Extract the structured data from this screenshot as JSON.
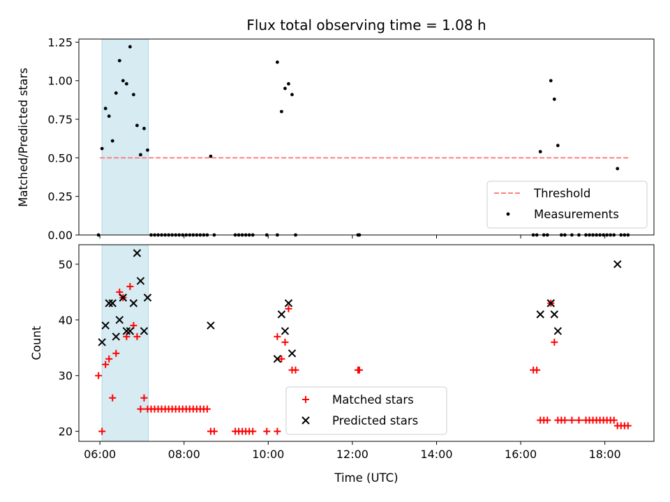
{
  "chart_data": [
    {
      "type": "scatter",
      "title": "Flux total observing time = 1.08 h",
      "xlabel": "",
      "ylabel": "Matched/Predicted stars",
      "xlim": [
        "05:30",
        "19:10"
      ],
      "ylim": [
        0,
        1.27
      ],
      "yticks": [
        "0.00",
        "0.25",
        "0.50",
        "0.75",
        "1.00",
        "1.25"
      ],
      "highlight_span": {
        "from": "06:03",
        "to": "07:09",
        "color": "#add8e6"
      },
      "threshold": {
        "name": "Threshold",
        "y": 0.5,
        "from": "06:00",
        "to": "18:35",
        "color": "#ff7f7f"
      },
      "series": [
        {
          "name": "Measurements",
          "color": "#000000",
          "points": [
            [
              "05:58",
              0.0
            ],
            [
              "06:03",
              0.56
            ],
            [
              "06:08",
              0.82
            ],
            [
              "06:13",
              0.77
            ],
            [
              "06:18",
              0.61
            ],
            [
              "06:23",
              0.92
            ],
            [
              "06:28",
              1.13
            ],
            [
              "06:33",
              1.0
            ],
            [
              "06:38",
              0.98
            ],
            [
              "06:43",
              1.22
            ],
            [
              "06:48",
              0.91
            ],
            [
              "06:53",
              0.71
            ],
            [
              "06:58",
              0.52
            ],
            [
              "07:03",
              0.69
            ],
            [
              "07:08",
              0.55
            ],
            [
              "07:13",
              0.0
            ],
            [
              "07:18",
              0.0
            ],
            [
              "07:23",
              0.0
            ],
            [
              "07:28",
              0.0
            ],
            [
              "07:33",
              0.0
            ],
            [
              "07:38",
              0.0
            ],
            [
              "07:43",
              0.0
            ],
            [
              "07:48",
              0.0
            ],
            [
              "07:53",
              0.0
            ],
            [
              "07:58",
              0.0
            ],
            [
              "08:03",
              0.0
            ],
            [
              "08:08",
              0.0
            ],
            [
              "08:13",
              0.0
            ],
            [
              "08:18",
              0.0
            ],
            [
              "08:23",
              0.0
            ],
            [
              "08:28",
              0.0
            ],
            [
              "08:33",
              0.0
            ],
            [
              "08:38",
              0.51
            ],
            [
              "08:43",
              0.0
            ],
            [
              "09:13",
              0.0
            ],
            [
              "09:18",
              0.0
            ],
            [
              "09:23",
              0.0
            ],
            [
              "09:28",
              0.0
            ],
            [
              "09:33",
              0.0
            ],
            [
              "09:38",
              0.0
            ],
            [
              "09:58",
              0.0
            ],
            [
              "10:13",
              0.0
            ],
            [
              "10:13",
              1.12
            ],
            [
              "10:19",
              0.8
            ],
            [
              "10:24",
              0.95
            ],
            [
              "10:29",
              0.98
            ],
            [
              "10:34",
              0.91
            ],
            [
              "10:39",
              0.0
            ],
            [
              "12:08",
              0.0
            ],
            [
              "12:10",
              0.0
            ],
            [
              "16:18",
              0.0
            ],
            [
              "16:23",
              0.0
            ],
            [
              "16:28",
              0.54
            ],
            [
              "16:33",
              0.0
            ],
            [
              "16:38",
              0.0
            ],
            [
              "16:43",
              1.0
            ],
            [
              "16:48",
              0.88
            ],
            [
              "16:53",
              0.58
            ],
            [
              "16:58",
              0.0
            ],
            [
              "17:03",
              0.0
            ],
            [
              "17:13",
              0.0
            ],
            [
              "17:23",
              0.0
            ],
            [
              "17:33",
              0.0
            ],
            [
              "17:38",
              0.0
            ],
            [
              "17:43",
              0.0
            ],
            [
              "17:48",
              0.0
            ],
            [
              "17:53",
              0.0
            ],
            [
              "17:58",
              0.0
            ],
            [
              "18:03",
              0.0
            ],
            [
              "18:08",
              0.0
            ],
            [
              "18:13",
              0.0
            ],
            [
              "18:18",
              0.43
            ],
            [
              "18:23",
              0.0
            ],
            [
              "18:28",
              0.0
            ],
            [
              "18:33",
              0.0
            ]
          ]
        }
      ],
      "legend": {
        "placement": "lower-right",
        "entries": [
          "Threshold",
          "Measurements"
        ]
      }
    },
    {
      "type": "scatter",
      "title": "",
      "xlabel": "Time (UTC)",
      "ylabel": "Count",
      "xlim": [
        "05:30",
        "19:10"
      ],
      "ylim": [
        18.2,
        53.5
      ],
      "xticks": [
        "06:00",
        "08:00",
        "10:00",
        "12:00",
        "14:00",
        "16:00",
        "18:00"
      ],
      "yticks": [
        "20",
        "30",
        "40",
        "50"
      ],
      "highlight_span": {
        "from": "06:03",
        "to": "07:09",
        "color": "#add8e6"
      },
      "series": [
        {
          "name": "Matched stars",
          "marker": "plus",
          "color": "#ff0000",
          "points": [
            [
              "05:58",
              30
            ],
            [
              "06:03",
              20
            ],
            [
              "06:08",
              32
            ],
            [
              "06:13",
              33
            ],
            [
              "06:18",
              26
            ],
            [
              "06:23",
              34
            ],
            [
              "06:28",
              45
            ],
            [
              "06:33",
              44
            ],
            [
              "06:38",
              37
            ],
            [
              "06:43",
              46
            ],
            [
              "06:48",
              39
            ],
            [
              "06:53",
              37
            ],
            [
              "06:58",
              24
            ],
            [
              "07:03",
              26
            ],
            [
              "07:08",
              24
            ],
            [
              "07:13",
              24
            ],
            [
              "07:18",
              24
            ],
            [
              "07:23",
              24
            ],
            [
              "07:28",
              24
            ],
            [
              "07:33",
              24
            ],
            [
              "07:38",
              24
            ],
            [
              "07:43",
              24
            ],
            [
              "07:48",
              24
            ],
            [
              "07:53",
              24
            ],
            [
              "07:58",
              24
            ],
            [
              "08:03",
              24
            ],
            [
              "08:08",
              24
            ],
            [
              "08:13",
              24
            ],
            [
              "08:18",
              24
            ],
            [
              "08:23",
              24
            ],
            [
              "08:28",
              24
            ],
            [
              "08:33",
              24
            ],
            [
              "08:38",
              20
            ],
            [
              "08:43",
              20
            ],
            [
              "09:13",
              20
            ],
            [
              "09:18",
              20
            ],
            [
              "09:23",
              20
            ],
            [
              "09:28",
              20
            ],
            [
              "09:33",
              20
            ],
            [
              "09:38",
              20
            ],
            [
              "09:58",
              20
            ],
            [
              "10:13",
              20
            ],
            [
              "10:13",
              37
            ],
            [
              "10:19",
              33
            ],
            [
              "10:24",
              36
            ],
            [
              "10:29",
              42
            ],
            [
              "10:34",
              31
            ],
            [
              "10:39",
              31
            ],
            [
              "12:08",
              31
            ],
            [
              "12:10",
              31
            ],
            [
              "16:18",
              31
            ],
            [
              "16:23",
              31
            ],
            [
              "16:28",
              22
            ],
            [
              "16:33",
              22
            ],
            [
              "16:38",
              22
            ],
            [
              "16:43",
              43
            ],
            [
              "16:48",
              36
            ],
            [
              "16:53",
              22
            ],
            [
              "16:58",
              22
            ],
            [
              "17:03",
              22
            ],
            [
              "17:13",
              22
            ],
            [
              "17:23",
              22
            ],
            [
              "17:33",
              22
            ],
            [
              "17:38",
              22
            ],
            [
              "17:43",
              22
            ],
            [
              "17:48",
              22
            ],
            [
              "17:53",
              22
            ],
            [
              "17:58",
              22
            ],
            [
              "18:03",
              22
            ],
            [
              "18:08",
              22
            ],
            [
              "18:13",
              22
            ],
            [
              "18:18",
              21
            ],
            [
              "18:23",
              21
            ],
            [
              "18:28",
              21
            ],
            [
              "18:33",
              21
            ]
          ]
        },
        {
          "name": "Predicted stars",
          "marker": "x",
          "color": "#000000",
          "points": [
            [
              "06:03",
              36
            ],
            [
              "06:08",
              39
            ],
            [
              "06:13",
              43
            ],
            [
              "06:18",
              43
            ],
            [
              "06:23",
              37
            ],
            [
              "06:28",
              40
            ],
            [
              "06:33",
              44
            ],
            [
              "06:38",
              38
            ],
            [
              "06:43",
              38
            ],
            [
              "06:48",
              43
            ],
            [
              "06:53",
              52
            ],
            [
              "06:58",
              47
            ],
            [
              "07:03",
              38
            ],
            [
              "07:08",
              44
            ],
            [
              "08:38",
              39
            ],
            [
              "10:13",
              33
            ],
            [
              "10:19",
              41
            ],
            [
              "10:24",
              38
            ],
            [
              "10:29",
              43
            ],
            [
              "10:34",
              34
            ],
            [
              "16:28",
              41
            ],
            [
              "16:43",
              43
            ],
            [
              "16:48",
              41
            ],
            [
              "16:53",
              38
            ],
            [
              "18:18",
              50
            ]
          ]
        }
      ],
      "legend": {
        "placement": "lower-center",
        "entries": [
          "Matched stars",
          "Predicted stars"
        ]
      }
    }
  ]
}
